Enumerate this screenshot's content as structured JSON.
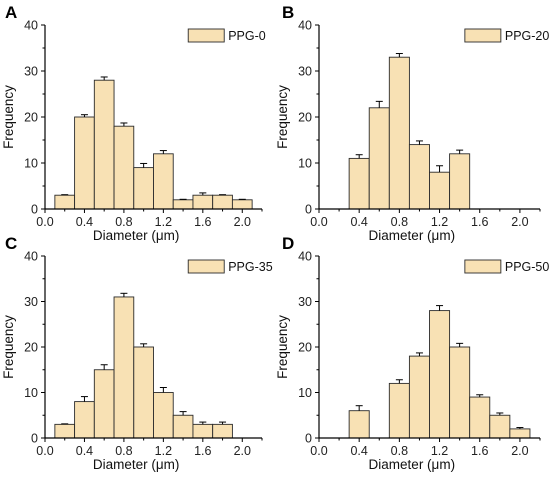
{
  "chart_data": [
    {
      "type": "bar",
      "panel": "A",
      "legend": "PPG-0",
      "xlabel": "Diameter (μm)",
      "ylabel": "Frequency",
      "xlim": [
        0.0,
        2.2
      ],
      "ylim": [
        0,
        40
      ],
      "x_ticks": [
        "0.0",
        "0.4",
        "0.8",
        "1.2",
        "1.6",
        "2.0"
      ],
      "y_ticks": [
        "0",
        "10",
        "20",
        "30",
        "40"
      ],
      "bar_width": 0.2,
      "x": [
        0.2,
        0.4,
        0.6,
        0.8,
        1.0,
        1.2,
        1.4,
        1.6,
        1.8,
        2.0
      ],
      "values": [
        3,
        20,
        28,
        18,
        9,
        12,
        2,
        3,
        3,
        2
      ],
      "errors": [
        0,
        0.5,
        0.7,
        0.7,
        0.9,
        0.7,
        0,
        0.5,
        0,
        0
      ]
    },
    {
      "type": "bar",
      "panel": "B",
      "legend": "PPG-20",
      "xlabel": "Diameter (μm)",
      "ylabel": "Frequency",
      "xlim": [
        0.0,
        2.2
      ],
      "ylim": [
        0,
        40
      ],
      "x_ticks": [
        "0.0",
        "0.4",
        "0.8",
        "1.2",
        "1.6",
        "2.0"
      ],
      "y_ticks": [
        "0",
        "10",
        "20",
        "30",
        "40"
      ],
      "bar_width": 0.2,
      "x": [
        0.4,
        0.6,
        0.8,
        1.0,
        1.2,
        1.4
      ],
      "values": [
        11,
        22,
        33,
        14,
        8,
        12
      ],
      "errors": [
        0.8,
        1.4,
        0.8,
        0.8,
        1.4,
        0.8
      ]
    },
    {
      "type": "bar",
      "panel": "C",
      "legend": "PPG-35",
      "xlabel": "Diameter (μm)",
      "ylabel": "Frequency",
      "xlim": [
        0.0,
        2.2
      ],
      "ylim": [
        0,
        40
      ],
      "x_ticks": [
        "0.0",
        "0.4",
        "0.8",
        "1.2",
        "1.6",
        "2.0"
      ],
      "y_ticks": [
        "0",
        "10",
        "20",
        "30",
        "40"
      ],
      "bar_width": 0.2,
      "x": [
        0.2,
        0.4,
        0.6,
        0.8,
        1.0,
        1.2,
        1.4,
        1.6,
        1.8
      ],
      "values": [
        3,
        8,
        15,
        31,
        20,
        10,
        5,
        3,
        3
      ],
      "errors": [
        0,
        1.1,
        1.1,
        0.8,
        0.7,
        1.1,
        0.8,
        0.5,
        0.5
      ]
    },
    {
      "type": "bar",
      "panel": "D",
      "legend": "PPG-50",
      "xlabel": "Diameter (μm)",
      "ylabel": "Frequency",
      "xlim": [
        0.0,
        2.2
      ],
      "ylim": [
        0,
        40
      ],
      "x_ticks": [
        "0.0",
        "0.4",
        "0.8",
        "1.2",
        "1.6",
        "2.0"
      ],
      "y_ticks": [
        "0",
        "10",
        "20",
        "30",
        "40"
      ],
      "bar_width": 0.2,
      "x": [
        0.4,
        0.8,
        1.0,
        1.2,
        1.4,
        1.6,
        1.8,
        2.0
      ],
      "values": [
        6,
        12,
        18,
        28,
        20,
        9,
        5,
        2
      ],
      "errors": [
        1.1,
        0.8,
        0.7,
        1.1,
        0.8,
        0.5,
        0.5,
        0.3
      ]
    }
  ],
  "colors": {
    "bar_fill": "#F8E1B4",
    "bar_stroke": "#2b2b2b",
    "axis": "#000000"
  }
}
